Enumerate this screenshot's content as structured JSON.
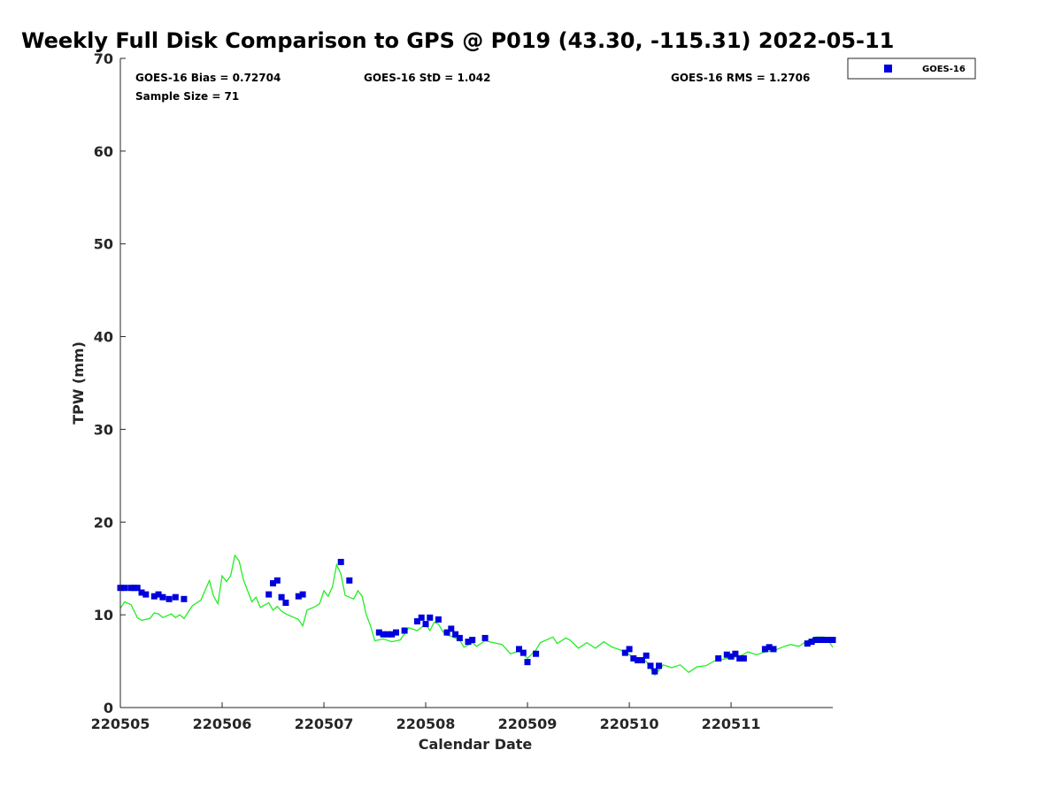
{
  "chart_data": {
    "type": "scatter",
    "title": "Weekly Full Disk Comparison to GPS @ P019 (43.30, -115.31) 2022-05-11",
    "xlabel": "Calendar Date",
    "ylabel": "TPW (mm)",
    "ylim": [
      0,
      70
    ],
    "yticks": [
      "0",
      "10",
      "20",
      "30",
      "40",
      "50",
      "60",
      "70"
    ],
    "xlim": [
      "2022-05-05T00:00",
      "2022-05-11T23:59"
    ],
    "xticks": [
      {
        "date": "2022-05-05",
        "label": "220505"
      },
      {
        "date": "2022-05-06",
        "label": "220506"
      },
      {
        "date": "2022-05-07",
        "label": "220507"
      },
      {
        "date": "2022-05-08",
        "label": "220508"
      },
      {
        "date": "2022-05-09",
        "label": "220509"
      },
      {
        "date": "2022-05-10",
        "label": "220510"
      },
      {
        "date": "2022-05-11",
        "label": "220511"
      }
    ],
    "stats": {
      "bias": "GOES-16 Bias = 0.72704",
      "std": "GOES-16 StD = 1.042",
      "rms": "GOES-16 RMS = 1.2706",
      "sample": "Sample Size = 71"
    },
    "legend": {
      "position": "top-right",
      "entries": [
        "GOES-16"
      ]
    },
    "colors": {
      "goes": "#0000dd",
      "gps": "#22ee22",
      "axis": "#262626"
    },
    "series": [
      {
        "name": "GOES-16",
        "marker": "square",
        "points": [
          [
            "2022-05-05T00:00",
            12.9
          ],
          [
            "2022-05-05T01:00",
            12.9
          ],
          [
            "2022-05-05T02:30",
            12.9
          ],
          [
            "2022-05-05T03:15",
            12.9
          ],
          [
            "2022-05-05T04:00",
            12.9
          ],
          [
            "2022-05-05T05:00",
            12.4
          ],
          [
            "2022-05-05T06:00",
            12.2
          ],
          [
            "2022-05-05T08:00",
            12.0
          ],
          [
            "2022-05-05T09:00",
            12.2
          ],
          [
            "2022-05-05T10:00",
            11.9
          ],
          [
            "2022-05-05T11:30",
            11.7
          ],
          [
            "2022-05-05T13:00",
            11.9
          ],
          [
            "2022-05-05T15:00",
            11.7
          ],
          [
            "2022-05-06T11:00",
            12.2
          ],
          [
            "2022-05-06T12:00",
            13.4
          ],
          [
            "2022-05-06T13:00",
            13.7
          ],
          [
            "2022-05-06T14:00",
            11.9
          ],
          [
            "2022-05-06T15:00",
            11.3
          ],
          [
            "2022-05-06T18:00",
            12.0
          ],
          [
            "2022-05-06T19:00",
            12.2
          ],
          [
            "2022-05-07T04:00",
            15.7
          ],
          [
            "2022-05-07T06:00",
            13.7
          ],
          [
            "2022-05-07T13:00",
            8.1
          ],
          [
            "2022-05-07T14:00",
            7.9
          ],
          [
            "2022-05-07T15:00",
            7.9
          ],
          [
            "2022-05-07T16:00",
            7.9
          ],
          [
            "2022-05-07T17:00",
            8.1
          ],
          [
            "2022-05-07T19:00",
            8.3
          ],
          [
            "2022-05-07T22:00",
            9.3
          ],
          [
            "2022-05-07T23:00",
            9.7
          ],
          [
            "2022-05-08T00:00",
            9.0
          ],
          [
            "2022-05-08T01:00",
            9.7
          ],
          [
            "2022-05-08T03:00",
            9.5
          ],
          [
            "2022-05-08T05:00",
            8.1
          ],
          [
            "2022-05-08T06:00",
            8.5
          ],
          [
            "2022-05-08T07:00",
            7.9
          ],
          [
            "2022-05-08T08:00",
            7.5
          ],
          [
            "2022-05-08T10:00",
            7.1
          ],
          [
            "2022-05-08T11:00",
            7.3
          ],
          [
            "2022-05-08T14:00",
            7.5
          ],
          [
            "2022-05-08T22:00",
            6.3
          ],
          [
            "2022-05-08T23:00",
            5.9
          ],
          [
            "2022-05-09T00:00",
            4.9
          ],
          [
            "2022-05-09T02:00",
            5.8
          ],
          [
            "2022-05-09T23:00",
            5.9
          ],
          [
            "2022-05-10T00:00",
            6.3
          ],
          [
            "2022-05-10T01:00",
            5.3
          ],
          [
            "2022-05-10T02:00",
            5.1
          ],
          [
            "2022-05-10T03:00",
            5.1
          ],
          [
            "2022-05-10T04:00",
            5.6
          ],
          [
            "2022-05-10T05:00",
            4.5
          ],
          [
            "2022-05-10T06:00",
            3.9
          ],
          [
            "2022-05-10T07:00",
            4.5
          ],
          [
            "2022-05-10T21:00",
            5.3
          ],
          [
            "2022-05-10T23:00",
            5.7
          ],
          [
            "2022-05-11T00:00",
            5.5
          ],
          [
            "2022-05-11T01:00",
            5.8
          ],
          [
            "2022-05-11T02:00",
            5.3
          ],
          [
            "2022-05-11T03:00",
            5.3
          ],
          [
            "2022-05-11T08:00",
            6.3
          ],
          [
            "2022-05-11T09:00",
            6.5
          ],
          [
            "2022-05-11T10:00",
            6.3
          ],
          [
            "2022-05-11T18:00",
            6.9
          ],
          [
            "2022-05-11T19:00",
            7.1
          ],
          [
            "2022-05-11T20:00",
            7.3
          ],
          [
            "2022-05-11T21:00",
            7.3
          ],
          [
            "2022-05-11T22:00",
            7.3
          ],
          [
            "2022-05-11T23:00",
            7.3
          ],
          [
            "2022-05-11T23:30",
            7.3
          ],
          [
            "2022-05-11T23:45",
            7.3
          ],
          [
            "2022-05-11T23:59",
            7.3
          ]
        ]
      },
      {
        "name": "GPS",
        "marker": "line",
        "points": [
          [
            "2022-05-05T00:00",
            10.7
          ],
          [
            "2022-05-05T01:00",
            11.4
          ],
          [
            "2022-05-05T02:30",
            11.1
          ],
          [
            "2022-05-05T04:00",
            9.7
          ],
          [
            "2022-05-05T05:00",
            9.4
          ],
          [
            "2022-05-05T07:00",
            9.6
          ],
          [
            "2022-05-05T08:00",
            10.2
          ],
          [
            "2022-05-05T09:00",
            10.1
          ],
          [
            "2022-05-05T10:00",
            9.7
          ],
          [
            "2022-05-05T12:00",
            10.1
          ],
          [
            "2022-05-05T13:00",
            9.7
          ],
          [
            "2022-05-05T14:00",
            10.0
          ],
          [
            "2022-05-05T15:00",
            9.6
          ],
          [
            "2022-05-05T16:00",
            10.3
          ],
          [
            "2022-05-05T17:00",
            11.0
          ],
          [
            "2022-05-05T19:00",
            11.6
          ],
          [
            "2022-05-05T21:00",
            13.7
          ],
          [
            "2022-05-05T22:00",
            12.0
          ],
          [
            "2022-05-05T23:00",
            11.2
          ],
          [
            "2022-05-06T00:00",
            14.2
          ],
          [
            "2022-05-06T01:00",
            13.6
          ],
          [
            "2022-05-06T02:00",
            14.2
          ],
          [
            "2022-05-06T03:00",
            16.4
          ],
          [
            "2022-05-06T04:00",
            15.8
          ],
          [
            "2022-05-06T05:00",
            13.8
          ],
          [
            "2022-05-06T06:00",
            12.6
          ],
          [
            "2022-05-06T07:00",
            11.4
          ],
          [
            "2022-05-06T08:00",
            11.9
          ],
          [
            "2022-05-06T09:00",
            10.8
          ],
          [
            "2022-05-06T11:00",
            11.3
          ],
          [
            "2022-05-06T12:00",
            10.5
          ],
          [
            "2022-05-06T13:00",
            10.9
          ],
          [
            "2022-05-06T14:00",
            10.4
          ],
          [
            "2022-05-06T15:00",
            10.1
          ],
          [
            "2022-05-06T17:00",
            9.7
          ],
          [
            "2022-05-06T18:00",
            9.5
          ],
          [
            "2022-05-06T19:00",
            8.8
          ],
          [
            "2022-05-06T20:00",
            10.5
          ],
          [
            "2022-05-06T22:00",
            10.9
          ],
          [
            "2022-05-06T23:00",
            11.2
          ],
          [
            "2022-05-07T00:00",
            12.6
          ],
          [
            "2022-05-07T01:00",
            12.0
          ],
          [
            "2022-05-07T02:00",
            13.0
          ],
          [
            "2022-05-07T03:00",
            15.4
          ],
          [
            "2022-05-07T04:00",
            14.4
          ],
          [
            "2022-05-07T05:00",
            12.1
          ],
          [
            "2022-05-07T07:00",
            11.7
          ],
          [
            "2022-05-07T08:00",
            12.6
          ],
          [
            "2022-05-07T09:00",
            12.0
          ],
          [
            "2022-05-07T10:00",
            10.0
          ],
          [
            "2022-05-07T11:00",
            8.8
          ],
          [
            "2022-05-07T12:00",
            7.2
          ],
          [
            "2022-05-07T14:00",
            7.4
          ],
          [
            "2022-05-07T16:00",
            7.1
          ],
          [
            "2022-05-07T18:00",
            7.3
          ],
          [
            "2022-05-07T20:00",
            8.6
          ],
          [
            "2022-05-07T22:00",
            8.3
          ],
          [
            "2022-05-08T00:00",
            9.0
          ],
          [
            "2022-05-08T01:00",
            8.3
          ],
          [
            "2022-05-08T02:00",
            9.2
          ],
          [
            "2022-05-08T03:00",
            9.0
          ],
          [
            "2022-05-08T04:00",
            8.2
          ],
          [
            "2022-05-08T05:00",
            7.8
          ],
          [
            "2022-05-08T06:00",
            7.7
          ],
          [
            "2022-05-08T08:00",
            7.3
          ],
          [
            "2022-05-08T09:00",
            6.5
          ],
          [
            "2022-05-08T11:00",
            7.0
          ],
          [
            "2022-05-08T12:00",
            6.6
          ],
          [
            "2022-05-08T14:00",
            7.2
          ],
          [
            "2022-05-08T16:00",
            7.0
          ],
          [
            "2022-05-08T18:00",
            6.8
          ],
          [
            "2022-05-08T20:00",
            5.8
          ],
          [
            "2022-05-08T22:00",
            6.1
          ],
          [
            "2022-05-09T00:00",
            5.3
          ],
          [
            "2022-05-09T02:00",
            6.2
          ],
          [
            "2022-05-09T03:00",
            7.0
          ],
          [
            "2022-05-09T06:00",
            7.6
          ],
          [
            "2022-05-09T07:00",
            6.9
          ],
          [
            "2022-05-09T09:00",
            7.5
          ],
          [
            "2022-05-09T10:00",
            7.3
          ],
          [
            "2022-05-09T12:00",
            6.4
          ],
          [
            "2022-05-09T14:00",
            7.0
          ],
          [
            "2022-05-09T16:00",
            6.4
          ],
          [
            "2022-05-09T18:00",
            7.1
          ],
          [
            "2022-05-09T20:00",
            6.5
          ],
          [
            "2022-05-09T22:00",
            6.2
          ],
          [
            "2022-05-10T00:00",
            5.7
          ],
          [
            "2022-05-10T02:00",
            5.1
          ],
          [
            "2022-05-10T04:00",
            5.0
          ],
          [
            "2022-05-10T06:00",
            3.5
          ],
          [
            "2022-05-10T08:00",
            4.6
          ],
          [
            "2022-05-10T10:00",
            4.3
          ],
          [
            "2022-05-10T12:00",
            4.6
          ],
          [
            "2022-05-10T14:00",
            3.8
          ],
          [
            "2022-05-10T16:00",
            4.4
          ],
          [
            "2022-05-10T18:00",
            4.5
          ],
          [
            "2022-05-10T20:00",
            5.0
          ],
          [
            "2022-05-10T22:00",
            5.2
          ],
          [
            "2022-05-11T00:00",
            5.4
          ],
          [
            "2022-05-11T02:00",
            5.5
          ],
          [
            "2022-05-11T04:00",
            6.0
          ],
          [
            "2022-05-11T06:00",
            5.7
          ],
          [
            "2022-05-11T08:00",
            6.0
          ],
          [
            "2022-05-11T10:00",
            6.1
          ],
          [
            "2022-05-11T12:00",
            6.5
          ],
          [
            "2022-05-11T14:00",
            6.8
          ],
          [
            "2022-05-11T16:00",
            6.6
          ],
          [
            "2022-05-11T18:00",
            7.2
          ],
          [
            "2022-05-11T20:00",
            7.6
          ],
          [
            "2022-05-11T22:00",
            7.6
          ],
          [
            "2022-05-11T23:00",
            7.2
          ],
          [
            "2022-05-11T23:59",
            6.5
          ]
        ]
      }
    ]
  }
}
